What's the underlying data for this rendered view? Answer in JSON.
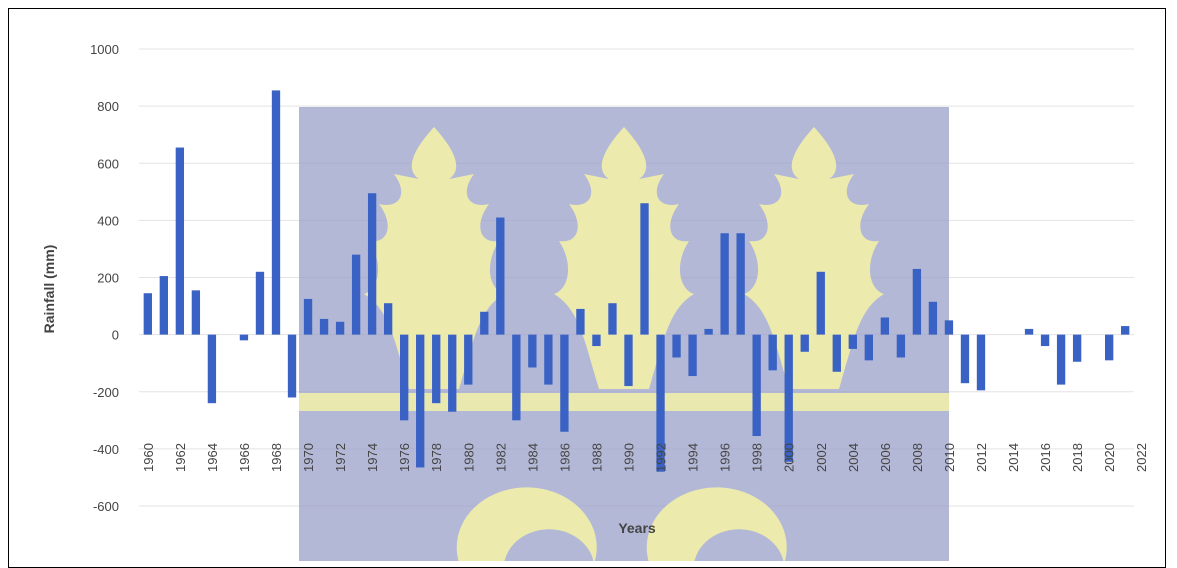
{
  "chart_data": {
    "type": "bar",
    "title": "",
    "xlabel": "Years",
    "ylabel": "Rainfall (mm)",
    "ylim": [
      -600,
      1000
    ],
    "yticks": [
      1000,
      800,
      600,
      400,
      200,
      0,
      -200,
      -400,
      -600
    ],
    "xtick_labels": [
      "1960",
      "1962",
      "1964",
      "1966",
      "1968",
      "1970",
      "1972",
      "1974",
      "1976",
      "1978",
      "1980",
      "1982",
      "1984",
      "1986",
      "1988",
      "1990",
      "1992",
      "1994",
      "1996",
      "1998",
      "2000",
      "2002",
      "2004",
      "2006",
      "2008",
      "2010",
      "2012",
      "2014",
      "2016",
      "2018",
      "2020",
      "2022"
    ],
    "grid": true,
    "bar_color": "#3a62c4",
    "watermark_colors": {
      "panel": "#9aa0c8",
      "emblem": "#f2f0a8"
    },
    "categories": [
      1960,
      1961,
      1962,
      1963,
      1964,
      1965,
      1966,
      1967,
      1968,
      1969,
      1970,
      1971,
      1972,
      1973,
      1974,
      1975,
      1976,
      1977,
      1978,
      1979,
      1980,
      1981,
      1982,
      1983,
      1984,
      1985,
      1986,
      1987,
      1988,
      1989,
      1990,
      1991,
      1992,
      1993,
      1994,
      1995,
      1996,
      1997,
      1998,
      1999,
      2000,
      2001,
      2002,
      2003,
      2004,
      2005,
      2006,
      2007,
      2008,
      2009,
      2010,
      2011,
      2012,
      2013,
      2014,
      2015,
      2016,
      2017,
      2018,
      2019,
      2020,
      2021
    ],
    "values": [
      145,
      205,
      655,
      155,
      -240,
      0,
      -20,
      220,
      855,
      -220,
      125,
      55,
      45,
      280,
      495,
      110,
      -300,
      -465,
      -240,
      -270,
      -175,
      80,
      410,
      -300,
      -115,
      -175,
      -340,
      90,
      -40,
      110,
      -180,
      460,
      -480,
      -80,
      -145,
      20,
      355,
      355,
      -355,
      -125,
      -445,
      -60,
      220,
      -130,
      -50,
      -90,
      60,
      -80,
      230,
      115,
      50,
      -170,
      -195,
      0,
      0,
      20,
      -40,
      -175,
      -95,
      0,
      -90,
      30
    ]
  }
}
